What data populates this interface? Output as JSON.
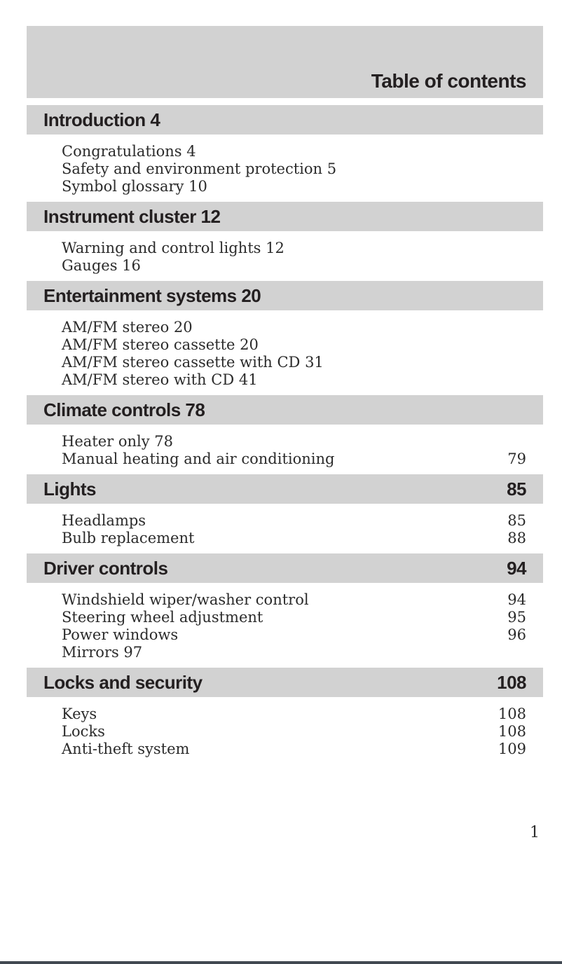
{
  "page": {
    "title": "Table of contents",
    "folio": "1"
  },
  "sections": [
    {
      "heading": "Introduction 4",
      "page": "",
      "items": [
        {
          "label": "Congratulations 4",
          "page": ""
        },
        {
          "label": "Safety and environment protection 5",
          "page": ""
        },
        {
          "label": "Symbol glossary 10",
          "page": ""
        }
      ]
    },
    {
      "heading": "Instrument cluster 12",
      "page": "",
      "items": [
        {
          "label": "Warning and control lights 12",
          "page": ""
        },
        {
          "label": "Gauges 16",
          "page": ""
        }
      ]
    },
    {
      "heading": "Entertainment systems 20",
      "page": "",
      "items": [
        {
          "label": "AM/FM stereo 20",
          "page": ""
        },
        {
          "label": "AM/FM stereo cassette 20",
          "page": ""
        },
        {
          "label": "AM/FM stereo cassette with CD 31",
          "page": ""
        },
        {
          "label": "AM/FM stereo with CD 41",
          "page": ""
        }
      ]
    },
    {
      "heading": "Climate controls 78",
      "page": "",
      "items": [
        {
          "label": "Heater only 78",
          "page": ""
        },
        {
          "label": "Manual heating and air conditioning",
          "page": "79"
        }
      ]
    },
    {
      "heading": "Lights",
      "page": "85",
      "items": [
        {
          "label": "Headlamps",
          "page": "85"
        },
        {
          "label": "Bulb replacement",
          "page": "88"
        }
      ]
    },
    {
      "heading": "Driver controls",
      "page": "94",
      "items": [
        {
          "label": "Windshield wiper/washer control",
          "page": "94"
        },
        {
          "label": "Steering wheel adjustment",
          "page": "95"
        },
        {
          "label": "Power windows",
          "page": "96"
        },
        {
          "label": "Mirrors 97",
          "page": ""
        }
      ]
    },
    {
      "heading": "Locks and security",
      "page": "108",
      "items": [
        {
          "label": "Keys",
          "page": "108"
        },
        {
          "label": "Locks",
          "page": "108"
        },
        {
          "label": "Anti-theft system",
          "page": "109"
        }
      ]
    }
  ],
  "colors": {
    "band": "#d2d2d2",
    "text": "#231f20",
    "rule": "#414851"
  }
}
